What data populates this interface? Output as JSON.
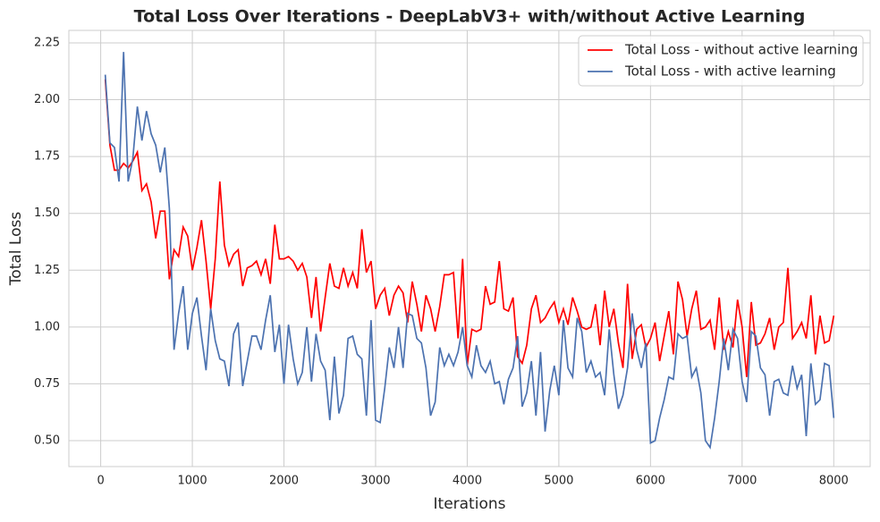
{
  "chart_data": {
    "type": "line",
    "title": "Total Loss Over Iterations - DeepLabV3+ with/without Active Learning",
    "x_label": "Iterations",
    "y_label": "Total Loss",
    "x": [
      50,
      100,
      150,
      200,
      250,
      300,
      350,
      400,
      450,
      500,
      550,
      600,
      650,
      700,
      750,
      800,
      850,
      900,
      950,
      1000,
      1050,
      1100,
      1150,
      1200,
      1250,
      1300,
      1350,
      1400,
      1450,
      1500,
      1550,
      1600,
      1650,
      1700,
      1750,
      1800,
      1850,
      1900,
      1950,
      2000,
      2050,
      2100,
      2150,
      2200,
      2250,
      2300,
      2350,
      2400,
      2450,
      2500,
      2550,
      2600,
      2650,
      2700,
      2750,
      2800,
      2850,
      2900,
      2950,
      3000,
      3050,
      3100,
      3150,
      3200,
      3250,
      3300,
      3350,
      3400,
      3450,
      3500,
      3550,
      3600,
      3650,
      3700,
      3750,
      3800,
      3850,
      3900,
      3950,
      4000,
      4050,
      4100,
      4150,
      4200,
      4250,
      4300,
      4350,
      4400,
      4450,
      4500,
      4550,
      4600,
      4650,
      4700,
      4750,
      4800,
      4850,
      4900,
      4950,
      5000,
      5050,
      5100,
      5150,
      5200,
      5250,
      5300,
      5350,
      5400,
      5450,
      5500,
      5550,
      5600,
      5650,
      5700,
      5750,
      5800,
      5850,
      5900,
      5950,
      6000,
      6050,
      6100,
      6150,
      6200,
      6250,
      6300,
      6350,
      6400,
      6450,
      6500,
      6550,
      6600,
      6650,
      6700,
      6750,
      6800,
      6850,
      6900,
      6950,
      7000,
      7050,
      7100,
      7150,
      7200,
      7250,
      7300,
      7350,
      7400,
      7450,
      7500,
      7550,
      7600,
      7650,
      7700,
      7750,
      7800,
      7850,
      7900,
      7950,
      8000
    ],
    "series": [
      {
        "name": "Total Loss - without active learning",
        "color": "#ff0000",
        "values": [
          2.09,
          1.8,
          1.69,
          1.69,
          1.72,
          1.7,
          1.73,
          1.77,
          1.6,
          1.63,
          1.55,
          1.39,
          1.51,
          1.51,
          1.21,
          1.34,
          1.31,
          1.44,
          1.4,
          1.25,
          1.35,
          1.47,
          1.29,
          1.08,
          1.3,
          1.64,
          1.36,
          1.27,
          1.32,
          1.34,
          1.18,
          1.26,
          1.27,
          1.29,
          1.23,
          1.3,
          1.19,
          1.45,
          1.3,
          1.3,
          1.31,
          1.29,
          1.25,
          1.28,
          1.22,
          1.04,
          1.22,
          0.98,
          1.13,
          1.28,
          1.18,
          1.17,
          1.26,
          1.18,
          1.24,
          1.17,
          1.43,
          1.24,
          1.29,
          1.08,
          1.14,
          1.17,
          1.05,
          1.14,
          1.18,
          1.15,
          1.02,
          1.2,
          1.1,
          0.98,
          1.14,
          1.08,
          0.98,
          1.09,
          1.23,
          1.23,
          1.24,
          0.95,
          1.3,
          0.83,
          0.99,
          0.98,
          0.99,
          1.18,
          1.1,
          1.11,
          1.29,
          1.08,
          1.07,
          1.13,
          0.87,
          0.84,
          0.92,
          1.08,
          1.14,
          1.02,
          1.04,
          1.08,
          1.11,
          1.02,
          1.08,
          1.01,
          1.13,
          1.07,
          1.0,
          0.99,
          1.0,
          1.1,
          0.92,
          1.16,
          1.0,
          1.08,
          0.93,
          0.82,
          1.19,
          0.86,
          0.99,
          1.01,
          0.91,
          0.95,
          1.02,
          0.85,
          0.96,
          1.07,
          0.88,
          1.2,
          1.12,
          0.96,
          1.08,
          1.16,
          0.99,
          1.0,
          1.03,
          0.9,
          1.13,
          0.9,
          0.98,
          0.91,
          1.12,
          1.0,
          0.78,
          1.11,
          0.92,
          0.93,
          0.97,
          1.04,
          0.9,
          1.0,
          1.02,
          1.26,
          0.95,
          0.98,
          1.02,
          0.95,
          1.14,
          0.88,
          1.05,
          0.93,
          0.94,
          1.05
        ]
      },
      {
        "name": "Total Loss - with active learning",
        "color": "#4c72b0",
        "values": [
          2.11,
          1.81,
          1.79,
          1.64,
          2.21,
          1.64,
          1.74,
          1.97,
          1.82,
          1.95,
          1.85,
          1.8,
          1.68,
          1.79,
          1.52,
          0.9,
          1.06,
          1.18,
          0.9,
          1.06,
          1.13,
          0.96,
          0.81,
          1.08,
          0.94,
          0.86,
          0.85,
          0.74,
          0.97,
          1.02,
          0.74,
          0.85,
          0.96,
          0.96,
          0.9,
          1.03,
          1.14,
          0.89,
          1.01,
          0.75,
          1.01,
          0.86,
          0.75,
          0.8,
          1.0,
          0.76,
          0.97,
          0.85,
          0.81,
          0.59,
          0.87,
          0.62,
          0.7,
          0.95,
          0.96,
          0.88,
          0.86,
          0.61,
          1.03,
          0.59,
          0.58,
          0.73,
          0.91,
          0.82,
          1.0,
          0.82,
          1.06,
          1.05,
          0.95,
          0.93,
          0.82,
          0.61,
          0.67,
          0.91,
          0.83,
          0.88,
          0.83,
          0.89,
          1.0,
          0.83,
          0.78,
          0.92,
          0.83,
          0.8,
          0.85,
          0.75,
          0.76,
          0.66,
          0.77,
          0.82,
          0.96,
          0.65,
          0.71,
          0.85,
          0.61,
          0.89,
          0.54,
          0.72,
          0.83,
          0.7,
          1.03,
          0.82,
          0.78,
          1.04,
          0.98,
          0.8,
          0.85,
          0.78,
          0.8,
          0.7,
          0.99,
          0.79,
          0.64,
          0.7,
          0.82,
          1.06,
          0.9,
          0.82,
          0.93,
          0.49,
          0.5,
          0.6,
          0.68,
          0.78,
          0.77,
          0.97,
          0.95,
          0.96,
          0.78,
          0.82,
          0.71,
          0.5,
          0.47,
          0.6,
          0.76,
          0.95,
          0.81,
          0.99,
          0.95,
          0.76,
          0.67,
          0.98,
          0.96,
          0.82,
          0.79,
          0.61,
          0.76,
          0.77,
          0.71,
          0.7,
          0.83,
          0.73,
          0.79,
          0.52,
          0.84,
          0.66,
          0.68,
          0.84,
          0.83,
          0.6
        ]
      }
    ],
    "xlim": [
      -347.5,
      8397.5
    ],
    "ylim": [
      0.386,
      2.305
    ],
    "xticks": [
      0,
      1000,
      2000,
      3000,
      4000,
      5000,
      6000,
      7000,
      8000
    ],
    "yticks": [
      {
        "value": 0.5,
        "label": "0.50"
      },
      0.75,
      {
        "value": 1,
        "label": "1.00"
      },
      1.25,
      {
        "value": 1.5,
        "label": "1.50"
      },
      1.75,
      {
        "value": 2,
        "label": "2.00"
      },
      2.25
    ],
    "grid": true,
    "legend": "upper right"
  }
}
